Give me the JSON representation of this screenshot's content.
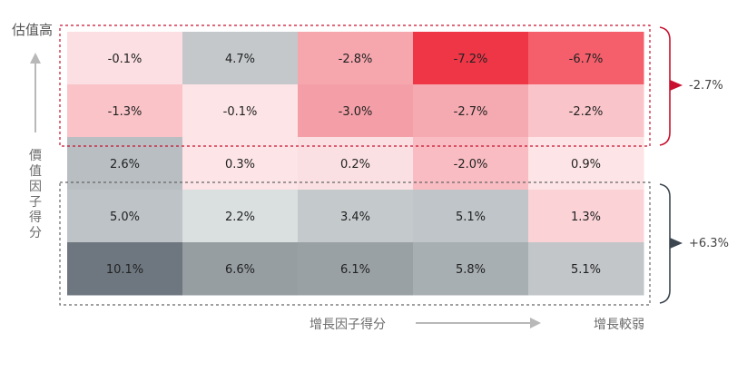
{
  "colors": {
    "bracket_top": "#c8102e",
    "bracket_bottom": "#3c4650",
    "arrow_gray": "#b8b8b8",
    "dashed": "#c8102e",
    "dashed_bottom": "#666666"
  },
  "labels": {
    "top_left": "估值高",
    "y_axis": "價值因子得分",
    "x_axis": "增長因子得分",
    "bottom_right": "增長較弱",
    "top_group_value": "-2.7%",
    "bottom_group_value": "+6.3%"
  },
  "chart_data": {
    "type": "heatmap",
    "rows": 5,
    "cols": 5,
    "values": [
      [
        "-0.1%",
        "4.7%",
        "-2.8%",
        "-7.2%",
        "-6.7%"
      ],
      [
        "-1.3%",
        "-0.1%",
        "-3.0%",
        "-2.7%",
        "-2.2%"
      ],
      [
        "2.6%",
        "0.3%",
        "0.2%",
        "-2.0%",
        "0.9%"
      ],
      [
        "5.0%",
        "2.2%",
        "3.4%",
        "5.1%",
        "1.3%"
      ],
      [
        "10.1%",
        "6.6%",
        "6.1%",
        "5.8%",
        "5.1%"
      ]
    ],
    "cell_colors": [
      [
        "#fbdfe2",
        "#c4c8cb",
        "#f6a7ae",
        "#ef3647",
        "#f55f6b"
      ],
      [
        "#f9c3c8",
        "#fde4e6",
        "#f49fa7",
        "#f5a9b0",
        "#fac5ca"
      ],
      [
        "#b8bec2",
        "#fde4e6",
        "#fbe0e3",
        "#f8bcc2",
        "#fde4e6"
      ],
      [
        "#bdc3c6",
        "#dadfdf",
        "#c4c9cb",
        "#bfc5c8",
        "#fbd3d7"
      ],
      [
        "#6e7780",
        "#969ea2",
        "#9aa1a5",
        "#a8afb2",
        "#c2c6c9"
      ]
    ],
    "groups": [
      {
        "rows": [
          0,
          1
        ],
        "value": "-2.7%",
        "bracket_color": "#c8102e"
      },
      {
        "rows": [
          3,
          4
        ],
        "value": "+6.3%",
        "bracket_color": "#3c4650"
      }
    ]
  }
}
